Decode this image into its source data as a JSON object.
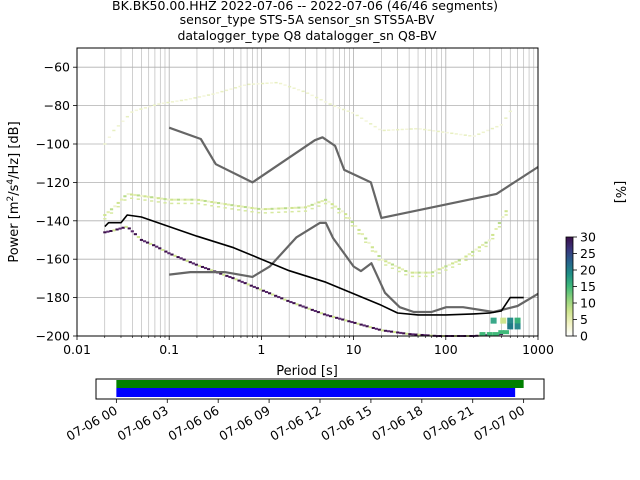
{
  "title_lines": [
    "BK.BK50.00.HHZ   2022-07-06 -- 2022-07-06  (46/46 segments)",
    "sensor_type STS-5A sensor_sn STS5A-BV",
    "datalogger_type Q8 datalogger_sn Q8-BV"
  ],
  "chart_data": {
    "type": "heatmap",
    "xlabel": "Period [s]",
    "ylabel": "Power [m^2/s^4/Hz] [dB]",
    "xscale": "log",
    "xlim": [
      0.01,
      1000
    ],
    "ylim": [
      -200,
      -50
    ],
    "x_ticks": [
      0.01,
      0.1,
      1,
      10,
      100,
      1000
    ],
    "x_tick_labels": [
      "0.01",
      "0.1",
      "1",
      "10",
      "100",
      "1000"
    ],
    "y_ticks": [
      -60,
      -80,
      -100,
      -120,
      -140,
      -160,
      -180,
      -200
    ],
    "y_tick_labels": [
      "−60",
      "−80",
      "−100",
      "−120",
      "−140",
      "−160",
      "−180",
      "−200"
    ],
    "grid": true,
    "colorbar": {
      "label": "[%]",
      "ticks": [
        0,
        5,
        10,
        15,
        20,
        25,
        30
      ],
      "tick_labels": [
        "0",
        "5",
        "10",
        "15",
        "20",
        "25",
        "30"
      ],
      "range": [
        0,
        30
      ],
      "colors": [
        "#ffffff",
        "#f2f3c4",
        "#cfe58f",
        "#8fd27c",
        "#40b97a",
        "#1f8f86",
        "#27638c",
        "#39367c",
        "#3b0f4a"
      ]
    },
    "series": [
      {
        "name": "NHNM",
        "color": "#666666",
        "x": [
          0.1,
          0.22,
          0.32,
          0.8,
          3.8,
          4.6,
          6.3,
          7.9,
          15.4,
          20,
          354.8,
          1000
        ],
        "y": [
          -91.5,
          -97.4,
          -110.5,
          -120,
          -98,
          -96.5,
          -101,
          -113.5,
          -120,
          -138.5,
          -126,
          -112
        ]
      },
      {
        "name": "NLNM",
        "color": "#666666",
        "x": [
          0.1,
          0.17,
          0.4,
          0.8,
          1.24,
          2.4,
          4.3,
          5,
          6,
          10,
          12,
          15.6,
          21.9,
          31.6,
          45,
          70,
          101,
          154,
          328,
          600,
          1000
        ],
        "y": [
          -168,
          -166.7,
          -166.7,
          -169.2,
          -163.7,
          -148.6,
          -141.1,
          -141.1,
          -149,
          -163.8,
          -166.2,
          -162.1,
          -177.5,
          -185,
          -187.5,
          -187.5,
          -185,
          -185,
          -187.5,
          -184.4,
          -178
        ]
      },
      {
        "name": "mode",
        "color": "#000000",
        "x": [
          0.02,
          0.022,
          0.03,
          0.035,
          0.05,
          0.1,
          0.2,
          0.5,
          1,
          2,
          5,
          10,
          20,
          30,
          50,
          100,
          200,
          300,
          400,
          500,
          700
        ],
        "y": [
          -143,
          -141,
          -141,
          -137,
          -138,
          -143,
          -148,
          -154,
          -160,
          -166,
          -172,
          -178,
          -184,
          -188,
          -189,
          -189,
          -188.5,
          -188,
          -187,
          -180,
          -180
        ]
      }
    ],
    "ppd_bands": [
      {
        "name": "main",
        "x": [
          0.02,
          0.025,
          0.035,
          0.05,
          0.07,
          0.1,
          0.2,
          0.5,
          1,
          2,
          5,
          10,
          20,
          40,
          80,
          200,
          400
        ],
        "y": [
          -146,
          -145,
          -143,
          -150,
          -153,
          -157,
          -163,
          -170,
          -176,
          -182,
          -189,
          -193,
          -197,
          -199,
          -200,
          -200,
          -199
        ]
      },
      {
        "name": "upper",
        "x": [
          0.02,
          0.025,
          0.035,
          0.05,
          0.1,
          0.2,
          0.5,
          1,
          3,
          5,
          8,
          12,
          20,
          40,
          70,
          150,
          300,
          450
        ],
        "y": [
          -137,
          -133,
          -126,
          -127,
          -129,
          -129,
          -132,
          -134,
          -133,
          -129,
          -136,
          -146,
          -160,
          -167,
          -167,
          -160,
          -150,
          -135
        ]
      },
      {
        "name": "outlier",
        "x": [
          0.02,
          0.025,
          0.04,
          0.08,
          0.15,
          0.3,
          0.7,
          1.5,
          3,
          6,
          10,
          20,
          50,
          100,
          200,
          400,
          500
        ],
        "y": [
          -100,
          -93,
          -83,
          -79,
          -77,
          -74,
          -69,
          -68,
          -73,
          -80,
          -84,
          -93,
          -92,
          -94,
          -96,
          -90,
          -83
        ]
      }
    ]
  },
  "timeline": {
    "tick_labels": [
      "07-06 00",
      "07-06 03",
      "07-06 06",
      "07-06 09",
      "07-06 12",
      "07-06 15",
      "07-06 18",
      "07-06 21",
      "07-07 00"
    ],
    "tick_hours": [
      0,
      3,
      6,
      9,
      12,
      15,
      18,
      21,
      24
    ],
    "range_hours": [
      -1.2,
      25.2
    ],
    "bars": [
      {
        "name": "data",
        "color": "#008000",
        "start_hours": 0,
        "end_hours": 24.0
      },
      {
        "name": "psd",
        "color": "#0000ff",
        "start_hours": 0,
        "end_hours": 23.5
      }
    ]
  }
}
